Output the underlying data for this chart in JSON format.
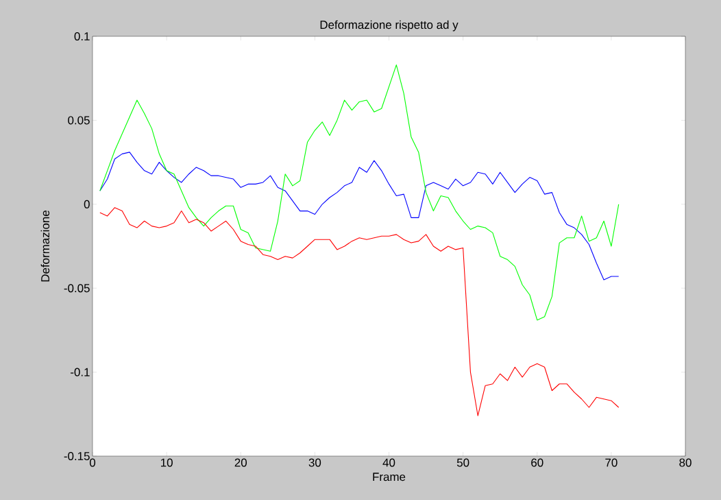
{
  "chart_data": {
    "type": "line",
    "title": "Deformazione rispetto ad y",
    "xlabel": "Frame",
    "ylabel": "Deformazione",
    "x": [
      1,
      2,
      3,
      4,
      5,
      6,
      7,
      8,
      9,
      10,
      11,
      12,
      13,
      14,
      15,
      16,
      17,
      18,
      19,
      20,
      21,
      22,
      23,
      24,
      25,
      26,
      27,
      28,
      29,
      30,
      31,
      32,
      33,
      34,
      35,
      36,
      37,
      38,
      39,
      40,
      41,
      42,
      43,
      44,
      45,
      46,
      47,
      48,
      49,
      50,
      51,
      52,
      53,
      54,
      55,
      56,
      57,
      58,
      59,
      60,
      61,
      62,
      63,
      64,
      65,
      66,
      67,
      68,
      69,
      70,
      71
    ],
    "series": [
      {
        "color": "#0000ff",
        "values": [
          0.008,
          0.015,
          0.027,
          0.03,
          0.031,
          0.025,
          0.02,
          0.018,
          0.025,
          0.02,
          0.016,
          0.013,
          0.018,
          0.022,
          0.02,
          0.017,
          0.017,
          0.016,
          0.015,
          0.01,
          0.012,
          0.012,
          0.013,
          0.017,
          0.01,
          0.008,
          0.002,
          -0.004,
          -0.004,
          -0.006,
          0.0,
          0.004,
          0.007,
          0.011,
          0.013,
          0.022,
          0.019,
          0.026,
          0.02,
          0.012,
          0.005,
          0.006,
          -0.008,
          -0.008,
          0.011,
          0.013,
          0.011,
          0.009,
          0.015,
          0.011,
          0.013,
          0.019,
          0.018,
          0.012,
          0.019,
          0.013,
          0.007,
          0.012,
          0.016,
          0.014,
          0.006,
          0.007,
          -0.005,
          -0.012,
          -0.014,
          -0.018,
          -0.024,
          -0.035,
          -0.045,
          -0.043,
          -0.043
        ]
      },
      {
        "color": "#00ff00",
        "values": [
          0.008,
          0.02,
          0.032,
          0.042,
          0.052,
          0.062,
          0.054,
          0.045,
          0.03,
          0.02,
          0.018,
          0.008,
          -0.002,
          -0.008,
          -0.013,
          -0.008,
          -0.004,
          -0.001,
          -0.001,
          -0.015,
          -0.017,
          -0.026,
          -0.027,
          -0.028,
          -0.01,
          0.018,
          0.011,
          0.014,
          0.037,
          0.044,
          0.049,
          0.041,
          0.05,
          0.062,
          0.056,
          0.061,
          0.062,
          0.055,
          0.057,
          0.07,
          0.083,
          0.066,
          0.04,
          0.031,
          0.007,
          -0.004,
          0.005,
          0.004,
          -0.004,
          -0.01,
          -0.015,
          -0.013,
          -0.014,
          -0.017,
          -0.031,
          -0.033,
          -0.037,
          -0.048,
          -0.054,
          -0.069,
          -0.067,
          -0.055,
          -0.023,
          -0.02,
          -0.02,
          -0.007,
          -0.022,
          -0.02,
          -0.01,
          -0.025,
          0.0
        ]
      },
      {
        "color": "#ff0000",
        "values": [
          -0.005,
          -0.007,
          -0.002,
          -0.004,
          -0.012,
          -0.014,
          -0.01,
          -0.013,
          -0.014,
          -0.013,
          -0.011,
          -0.004,
          -0.011,
          -0.009,
          -0.011,
          -0.016,
          -0.013,
          -0.01,
          -0.015,
          -0.022,
          -0.024,
          -0.025,
          -0.03,
          -0.031,
          -0.033,
          -0.031,
          -0.032,
          -0.029,
          -0.025,
          -0.021,
          -0.021,
          -0.021,
          -0.027,
          -0.025,
          -0.022,
          -0.02,
          -0.021,
          -0.02,
          -0.019,
          -0.019,
          -0.018,
          -0.021,
          -0.023,
          -0.022,
          -0.018,
          -0.025,
          -0.028,
          -0.025,
          -0.027,
          -0.026,
          -0.1,
          -0.126,
          -0.108,
          -0.107,
          -0.101,
          -0.105,
          -0.097,
          -0.103,
          -0.097,
          -0.095,
          -0.097,
          -0.111,
          -0.107,
          -0.107,
          -0.112,
          -0.116,
          -0.121,
          -0.115,
          -0.116,
          -0.117,
          -0.121
        ]
      }
    ],
    "xlim": [
      0,
      80
    ],
    "ylim": [
      -0.15,
      0.1
    ],
    "xticks": [
      0,
      10,
      20,
      30,
      40,
      50,
      60,
      70,
      80
    ],
    "yticks": [
      -0.15,
      -0.1,
      -0.05,
      0,
      0.05,
      0.1
    ],
    "grid": false,
    "marker": "none",
    "line_style": "solid"
  }
}
